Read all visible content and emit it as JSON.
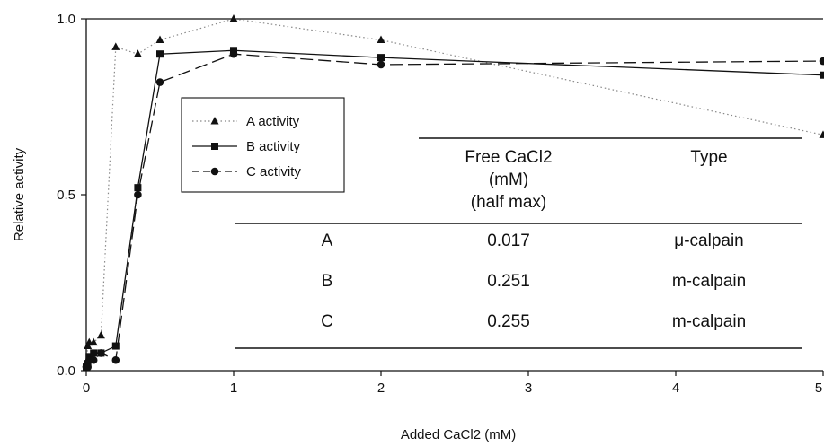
{
  "chart_data": {
    "type": "line",
    "title": "",
    "xlabel": "Added CaCl2 (mM)",
    "ylabel": "Relative activity",
    "xlim": [
      0,
      5
    ],
    "ylim": [
      0,
      1.0
    ],
    "x_ticks": [
      0,
      1,
      2,
      3,
      4,
      5
    ],
    "x_tick_labels": [
      "0",
      "1",
      "2",
      "3",
      "4",
      "5"
    ],
    "y_ticks": [
      0.0,
      0.5,
      1.0
    ],
    "y_tick_labels": [
      "0.0",
      "0.5",
      "1.0"
    ],
    "grid": false,
    "legend_position": "upper-left",
    "series": [
      {
        "name": "A activity",
        "marker": "triangle",
        "line_style": "dotted",
        "color": "#888888",
        "x": [
          0,
          0.01,
          0.02,
          0.05,
          0.1,
          0.2,
          0.35,
          0.5,
          1,
          2,
          5
        ],
        "y": [
          0.02,
          0.07,
          0.08,
          0.08,
          0.1,
          0.92,
          0.9,
          0.94,
          1.0,
          0.94,
          0.67
        ]
      },
      {
        "name": "B activity",
        "marker": "square",
        "line_style": "solid",
        "color": "#111111",
        "x": [
          0,
          0.01,
          0.02,
          0.05,
          0.1,
          0.2,
          0.35,
          0.5,
          1,
          2,
          5
        ],
        "y": [
          0.01,
          0.02,
          0.04,
          0.05,
          0.05,
          0.07,
          0.52,
          0.9,
          0.91,
          0.89,
          0.84
        ]
      },
      {
        "name": "C activity",
        "marker": "circle",
        "line_style": "dashed",
        "color": "#111111",
        "x": [
          0,
          0.01,
          0.02,
          0.05,
          0.1,
          0.2,
          0.35,
          0.5,
          1,
          2,
          5
        ],
        "y": [
          0.01,
          0.01,
          0.03,
          0.03,
          0.05,
          0.03,
          0.5,
          0.82,
          0.9,
          0.87,
          0.88
        ]
      }
    ],
    "table": {
      "headers": [
        {
          "lines": [
            ""
          ]
        },
        {
          "lines": [
            "Free CaCl2",
            "(mM)",
            "(half max)"
          ]
        },
        {
          "lines": [
            "Type"
          ]
        }
      ],
      "rows": [
        [
          "A",
          "0.017",
          "μ-calpain"
        ],
        [
          "B",
          "0.251",
          "m-calpain"
        ],
        [
          "C",
          "0.255",
          "m-calpain"
        ]
      ]
    }
  }
}
